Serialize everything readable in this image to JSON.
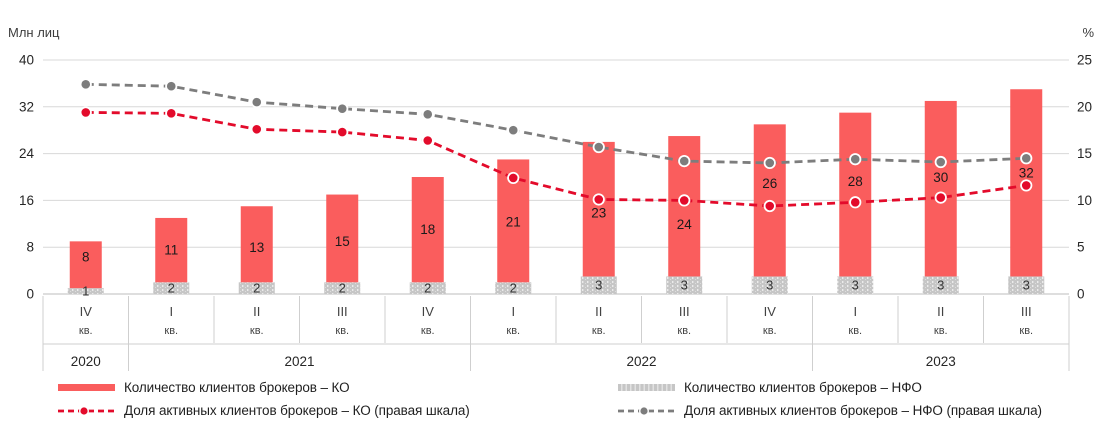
{
  "chart_data": {
    "type": "combo",
    "title": "",
    "stacked_bars": true,
    "grid": true,
    "legend_position": "bottom",
    "quarter_suffix": "кв.",
    "quarters": [
      "IV",
      "I",
      "II",
      "III",
      "IV",
      "I",
      "II",
      "III",
      "IV",
      "I",
      "II",
      "III"
    ],
    "year_groups": [
      {
        "label": "2020",
        "quarters": 1
      },
      {
        "label": "2021",
        "quarters": 4
      },
      {
        "label": "2022",
        "quarters": 4
      },
      {
        "label": "2023",
        "quarters": 3
      }
    ],
    "left_axis": {
      "label": "Млн лиц",
      "ticks": [
        0,
        8,
        16,
        24,
        32,
        40
      ],
      "range": [
        0,
        40
      ]
    },
    "right_axis": {
      "label": "%",
      "ticks": [
        0,
        5,
        10,
        15,
        20,
        25
      ],
      "range": [
        0,
        25
      ]
    },
    "series": [
      {
        "id": "bar_ko",
        "name": "Количество клиентов брокеров – КО",
        "type": "bar",
        "axis": "left",
        "color": "#fa5d5d",
        "values": [
          8,
          11,
          13,
          15,
          18,
          21,
          23,
          24,
          26,
          28,
          30,
          32
        ]
      },
      {
        "id": "bar_nfo",
        "name": "Количество клиентов брокеров – НФО",
        "type": "bar",
        "axis": "left",
        "color": "#c6c6c6",
        "values": [
          1,
          2,
          2,
          2,
          2,
          2,
          3,
          3,
          3,
          3,
          3,
          3
        ]
      },
      {
        "id": "line_ko",
        "name": "Доля активных клиентов брокеров – КО (правая шкала)",
        "type": "line",
        "axis": "right",
        "color": "#e30b2b",
        "values": [
          19.4,
          19.3,
          17.6,
          17.3,
          16.4,
          12.4,
          10.1,
          10.0,
          9.4,
          9.8,
          10.3,
          11.6
        ]
      },
      {
        "id": "line_nfo",
        "name": "Доля активных клиентов брокеров – НФО (правая шкала)",
        "type": "line",
        "axis": "right",
        "color": "#7d7d7d",
        "values": [
          22.4,
          22.2,
          20.5,
          19.8,
          19.2,
          17.5,
          15.7,
          14.2,
          14.0,
          14.4,
          14.1,
          14.5
        ]
      }
    ]
  }
}
